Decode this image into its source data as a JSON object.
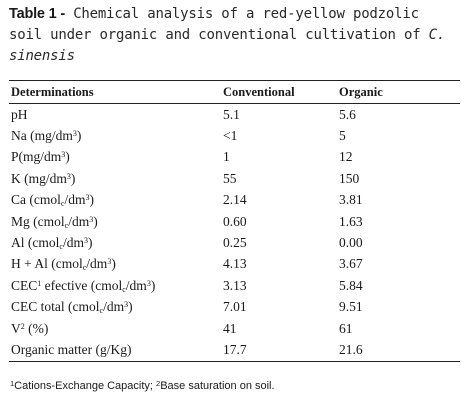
{
  "caption": {
    "label": "Table 1 -",
    "text": "Chemical analysis of a red-yellow podzolic soil under organic and conventional cultivation of",
    "species": "C. sinensis"
  },
  "table": {
    "headers": [
      "Determinations",
      "Conventional",
      "Organic"
    ],
    "rows": [
      {
        "det": "pH",
        "conventional": "5.1",
        "organic": "5.6"
      },
      {
        "det": "Na (mg/dm³)",
        "conventional": "<1",
        "organic": "5"
      },
      {
        "det": "P(mg/dm³)",
        "conventional": "1",
        "organic": "12"
      },
      {
        "det": "K (mg/dm³)",
        "conventional": "55",
        "organic": "150"
      },
      {
        "det": "Ca (cmolᴄ/dm³)",
        "conventional": "2.14",
        "organic": "3.81"
      },
      {
        "det": "Mg (cmolᴄ/dm³)",
        "conventional": "0.60",
        "organic": "1.63"
      },
      {
        "det": "Al (cmolᴄ/dm³)",
        "conventional": "0.25",
        "organic": "0.00"
      },
      {
        "det": "H + Al (cmolᴄ/dm³)",
        "conventional": "4.13",
        "organic": "3.67"
      },
      {
        "det": "CEC¹ efective (cmolᴄ/dm³)",
        "conventional": "3.13",
        "organic": "5.84"
      },
      {
        "det": "CEC total (cmolᴄ/dm³)",
        "conventional": "7.01",
        "organic": "9.51"
      },
      {
        "det": "V² (%)",
        "conventional": "41",
        "organic": "61"
      },
      {
        "det": "Organic matter (g/Kg)",
        "conventional": "17.7",
        "organic": "21.6"
      }
    ]
  },
  "footnote": "¹Cations-Exchange Capacity; ²Base saturation on soil."
}
